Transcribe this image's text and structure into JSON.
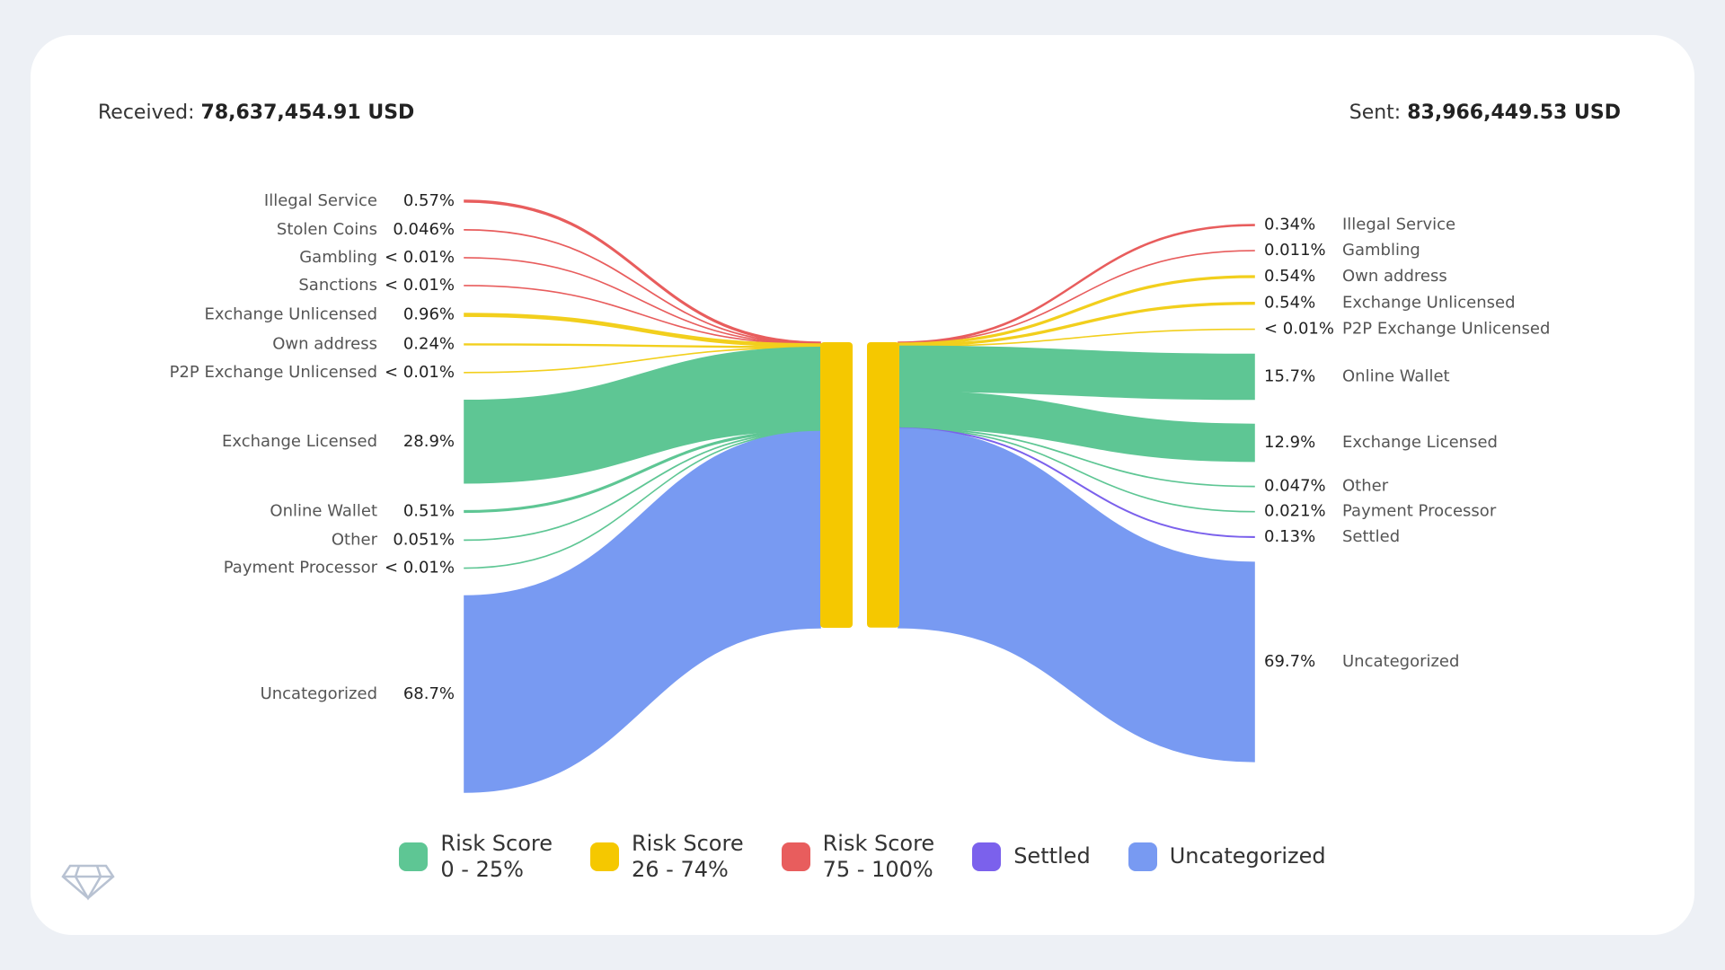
{
  "chart_data": {
    "type": "sankey",
    "received_label": "Received:",
    "received": "78,637,454.91 USD",
    "sent_label": "Sent:",
    "sent": "83,966,449.53 USD",
    "node_color": "#f5c800",
    "left": [
      {
        "name": "Illegal Service",
        "value": 0.57,
        "value_label": "0.57%",
        "color": "#e85d5d"
      },
      {
        "name": "Stolen Coins",
        "value": 0.046,
        "value_label": "0.046%",
        "color": "#e85d5d"
      },
      {
        "name": "Gambling",
        "value": 0.005,
        "value_label": "< 0.01%",
        "color": "#e85d5d"
      },
      {
        "name": "Sanctions",
        "value": 0.005,
        "value_label": "< 0.01%",
        "color": "#e85d5d"
      },
      {
        "name": "Exchange Unlicensed",
        "value": 0.96,
        "value_label": "0.96%",
        "color": "#f2cf1d"
      },
      {
        "name": "Own address",
        "value": 0.24,
        "value_label": "0.24%",
        "color": "#f2cf1d"
      },
      {
        "name": "P2P Exchange Unlicensed",
        "value": 0.005,
        "value_label": "< 0.01%",
        "color": "#f2cf1d"
      },
      {
        "name": "Exchange Licensed",
        "value": 28.9,
        "value_label": "28.9%",
        "color": "#5ec694"
      },
      {
        "name": "Online Wallet",
        "value": 0.51,
        "value_label": "0.51%",
        "color": "#5ec694"
      },
      {
        "name": "Other",
        "value": 0.051,
        "value_label": "0.051%",
        "color": "#5ec694"
      },
      {
        "name": "Payment Processor",
        "value": 0.005,
        "value_label": "< 0.01%",
        "color": "#5ec694"
      },
      {
        "name": "Uncategorized",
        "value": 68.7,
        "value_label": "68.7%",
        "color": "#789af2"
      }
    ],
    "right": [
      {
        "name": "Illegal Service",
        "value": 0.34,
        "value_label": "0.34%",
        "color": "#e85d5d"
      },
      {
        "name": "Gambling",
        "value": 0.011,
        "value_label": "0.011%",
        "color": "#e85d5d"
      },
      {
        "name": "Own address",
        "value": 0.54,
        "value_label": "0.54%",
        "color": "#f2cf1d"
      },
      {
        "name": "Exchange Unlicensed",
        "value": 0.54,
        "value_label": "0.54%",
        "color": "#f2cf1d"
      },
      {
        "name": "P2P Exchange Unlicensed",
        "value": 0.005,
        "value_label": "< 0.01%",
        "color": "#f2cf1d"
      },
      {
        "name": "Online Wallet",
        "value": 15.7,
        "value_label": "15.7%",
        "color": "#5ec694"
      },
      {
        "name": "Exchange Licensed",
        "value": 12.9,
        "value_label": "12.9%",
        "color": "#5ec694"
      },
      {
        "name": "Other",
        "value": 0.047,
        "value_label": "0.047%",
        "color": "#5ec694"
      },
      {
        "name": "Payment Processor",
        "value": 0.021,
        "value_label": "0.021%",
        "color": "#5ec694"
      },
      {
        "name": "Settled",
        "value": 0.13,
        "value_label": "0.13%",
        "color": "#7b61ec"
      },
      {
        "name": "Uncategorized",
        "value": 69.7,
        "value_label": "69.7%",
        "color": "#789af2"
      }
    ],
    "legend": [
      {
        "lines": [
          "Risk Score",
          "0 - 25%"
        ],
        "color": "#5ec694"
      },
      {
        "lines": [
          "Risk Score",
          "26 - 74%"
        ],
        "color": "#f5c800"
      },
      {
        "lines": [
          "Risk Score",
          "75 - 100%"
        ],
        "color": "#e85d5d"
      },
      {
        "lines": [
          "Settled"
        ],
        "color": "#7b61ec"
      },
      {
        "lines": [
          "Uncategorized"
        ],
        "color": "#789af2"
      }
    ]
  }
}
